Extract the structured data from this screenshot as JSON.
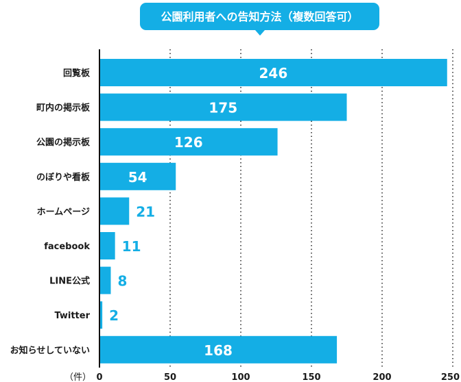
{
  "chart_data": {
    "type": "bar",
    "orientation": "horizontal",
    "title": "公園利用者への告知方法（複数回答可）",
    "unit_label": "（件）",
    "categories": [
      "回覧板",
      "町内の掲示板",
      "公園の掲示板",
      "のぼりや看板",
      "ホームページ",
      "facebook",
      "LINE公式",
      "Twitter",
      "お知らせしていない"
    ],
    "values": [
      246,
      175,
      126,
      54,
      21,
      11,
      8,
      2,
      168
    ],
    "xlim": [
      0,
      250
    ],
    "xticks": [
      0,
      50,
      100,
      150,
      200,
      250
    ],
    "grid": "vertical dotted",
    "legend": "none"
  },
  "colors": {
    "bar": "#14aee5",
    "title_bg": "#14aee5",
    "title_text": "#ffffff",
    "label_inside": "#ffffff",
    "label_outside": "#14aee5",
    "axis": "#111111",
    "grid": "#222222",
    "text": "#1a1a1a"
  }
}
